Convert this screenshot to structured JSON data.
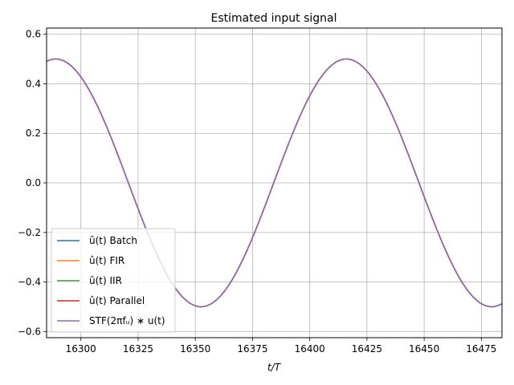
{
  "chart_data": {
    "type": "line",
    "title": "Estimated input signal",
    "xlabel": "t/T",
    "ylabel": "",
    "xlim": [
      16285,
      16484
    ],
    "ylim": [
      -0.625,
      0.625
    ],
    "xticks": [
      16300,
      16325,
      16350,
      16375,
      16400,
      16425,
      16450,
      16475
    ],
    "xtick_labels": [
      "16300",
      "16325",
      "16350",
      "16375",
      "16400",
      "16425",
      "16450",
      "16475"
    ],
    "yticks": [
      -0.6,
      -0.4,
      -0.2,
      0.0,
      0.2,
      0.4,
      0.6
    ],
    "ytick_labels": [
      "−0.6",
      "−0.4",
      "−0.2",
      "0.0",
      "0.2",
      "0.4",
      "0.6"
    ],
    "grid": true,
    "legend_position": "lower-left",
    "signal": {
      "description": "sinusoid",
      "amplitude": 0.5,
      "period": 127,
      "peak_at": 16289,
      "sample_step": 1
    },
    "series": [
      {
        "name": "û(t) Batch",
        "legend_label": "û(t) Batch",
        "color": "#1f77b4"
      },
      {
        "name": "û(t) FIR",
        "legend_label": "û(t) FIR",
        "color": "#ff7f0e"
      },
      {
        "name": "û(t) IIR",
        "legend_label": "û(t) IIR",
        "color": "#2ca02c"
      },
      {
        "name": "û(t) Parallel",
        "legend_label": "û(t) Parallel",
        "color": "#d62728"
      },
      {
        "name": "STF(2πf_u)∗u(t)",
        "legend_label": "STF(2πfᵤ) ∗ u(t)",
        "color": "#9467bd"
      }
    ]
  }
}
